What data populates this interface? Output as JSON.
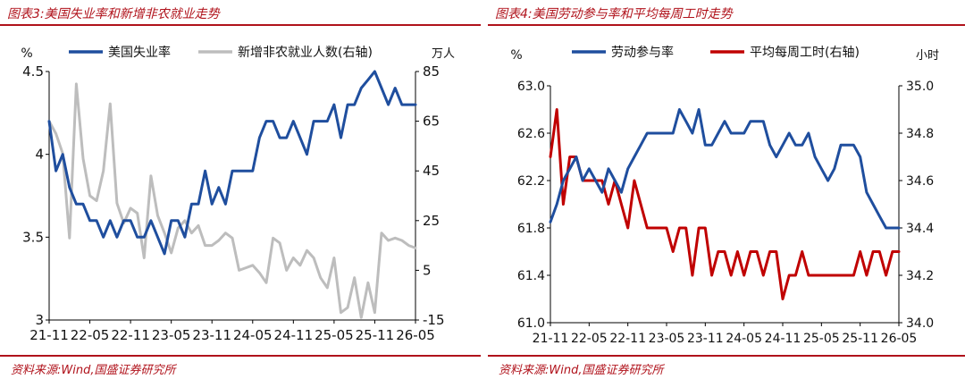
{
  "charts": [
    {
      "title": "图表3:美国失业率和新增非农就业走势",
      "source": "资料来源:Wind,国盛证券研究所",
      "chart_data": {
        "type": "line",
        "x": [
          "21-11",
          "21-12",
          "22-01",
          "22-02",
          "22-03",
          "22-04",
          "22-05",
          "22-06",
          "22-07",
          "22-08",
          "22-09",
          "22-10",
          "22-11",
          "22-12",
          "23-01",
          "23-02",
          "23-03",
          "23-04",
          "23-05",
          "23-06",
          "23-07",
          "23-08",
          "23-09",
          "23-10",
          "23-11",
          "23-12",
          "24-01",
          "24-02",
          "24-03",
          "24-04",
          "24-05",
          "24-06",
          "24-07",
          "24-08",
          "24-09",
          "24-10",
          "24-11",
          "24-12",
          "25-01",
          "25-02",
          "25-03",
          "25-04",
          "25-05",
          "25-06",
          "25-07",
          "25-08",
          "25-09",
          "25-10",
          "25-11",
          "25-12",
          "26-01",
          "26-02",
          "26-03",
          "26-04",
          "26-05"
        ],
        "xticks": [
          "21-11",
          "22-05",
          "22-11",
          "23-05",
          "23-11",
          "24-05",
          "24-11",
          "25-05",
          "25-11",
          "26-05"
        ],
        "left_unit": "%",
        "right_unit": "万人",
        "ylim_left": [
          3,
          4.5
        ],
        "yticks_left": [
          "4.5",
          "4",
          "3.5",
          "3"
        ],
        "ylim_right": [
          -15,
          85
        ],
        "yticks_right": [
          "85",
          "65",
          "45",
          "25",
          "5",
          "-15"
        ],
        "legend_position": "top",
        "series": [
          {
            "name": "美国失业率",
            "axis": "left",
            "color": "#1f4e9e",
            "values": [
              4.2,
              3.9,
              4.0,
              3.8,
              3.7,
              3.7,
              3.6,
              3.6,
              3.5,
              3.6,
              3.5,
              3.6,
              3.6,
              3.5,
              3.5,
              3.6,
              3.5,
              3.4,
              3.6,
              3.6,
              3.5,
              3.7,
              3.7,
              3.9,
              3.7,
              3.8,
              3.7,
              3.9,
              3.9,
              3.9,
              3.9,
              4.1,
              4.2,
              4.2,
              4.1,
              4.1,
              4.2,
              4.1,
              4.0,
              4.2,
              4.2,
              4.2,
              4.3,
              4.1,
              4.3,
              4.3,
              4.4,
              4.45,
              4.5,
              4.4,
              4.3,
              4.4,
              4.3,
              4.3,
              4.3
            ]
          },
          {
            "name": "新增非农就业人数(右轴)",
            "axis": "right",
            "color": "#bdbdbd",
            "values": [
              65,
              60,
              52,
              18,
              80,
              50,
              35,
              33,
              45,
              72,
              32,
              24,
              30,
              28,
              10,
              43,
              27,
              20,
              12,
              22,
              25,
              20,
              23,
              15,
              15,
              17,
              20,
              18,
              5,
              6,
              7,
              4,
              0,
              18,
              16,
              5,
              10,
              7,
              13,
              10,
              2,
              -2,
              10,
              -12,
              -10,
              2,
              -14,
              0,
              -12,
              20,
              17,
              18,
              17,
              15,
              14
            ]
          }
        ]
      }
    },
    {
      "title": "图表4:美国劳动参与率和平均每周工时走势",
      "source": "资料来源:Wind,国盛证券研究所",
      "chart_data": {
        "type": "line",
        "x": [
          "21-11",
          "21-12",
          "22-01",
          "22-02",
          "22-03",
          "22-04",
          "22-05",
          "22-06",
          "22-07",
          "22-08",
          "22-09",
          "22-10",
          "22-11",
          "22-12",
          "23-01",
          "23-02",
          "23-03",
          "23-04",
          "23-05",
          "23-06",
          "23-07",
          "23-08",
          "23-09",
          "23-10",
          "23-11",
          "23-12",
          "24-01",
          "24-02",
          "24-03",
          "24-04",
          "24-05",
          "24-06",
          "24-07",
          "24-08",
          "24-09",
          "24-10",
          "24-11",
          "24-12",
          "25-01",
          "25-02",
          "25-03",
          "25-04",
          "25-05",
          "25-06",
          "25-07",
          "25-08",
          "25-09",
          "25-10",
          "25-11",
          "25-12",
          "26-01",
          "26-02",
          "26-03",
          "26-04",
          "26-05"
        ],
        "xticks": [
          "21-11",
          "22-05",
          "22-11",
          "23-05",
          "23-11",
          "24-05",
          "24-11",
          "25-05",
          "25-11",
          "26-05"
        ],
        "left_unit": "%",
        "right_unit": "小时",
        "ylim_left": [
          61.0,
          63.0
        ],
        "yticks_left": [
          "63.0",
          "62.6",
          "62.2",
          "61.8",
          "61.4",
          "61.0"
        ],
        "ylim_right": [
          34.0,
          35.0
        ],
        "yticks_right": [
          "35.0",
          "34.8",
          "34.6",
          "34.4",
          "34.2",
          "34.0"
        ],
        "legend_position": "top",
        "series": [
          {
            "name": "劳动参与率",
            "axis": "left",
            "color": "#1f4e9e",
            "values": [
              61.85,
              62.0,
              62.2,
              62.3,
              62.4,
              62.2,
              62.3,
              62.2,
              62.1,
              62.3,
              62.2,
              62.1,
              62.3,
              62.4,
              62.5,
              62.6,
              62.6,
              62.6,
              62.6,
              62.6,
              62.8,
              62.7,
              62.6,
              62.8,
              62.5,
              62.5,
              62.6,
              62.7,
              62.6,
              62.6,
              62.6,
              62.7,
              62.7,
              62.7,
              62.5,
              62.4,
              62.5,
              62.6,
              62.5,
              62.5,
              62.6,
              62.4,
              62.3,
              62.2,
              62.3,
              62.5,
              62.5,
              62.5,
              62.4,
              62.1,
              62.0,
              61.9,
              61.8,
              61.8,
              61.8
            ]
          },
          {
            "name": "平均每周工时(右轴)",
            "axis": "right",
            "color": "#c00000",
            "values": [
              34.7,
              34.9,
              34.5,
              34.7,
              34.7,
              34.6,
              34.6,
              34.6,
              34.6,
              34.5,
              34.6,
              34.5,
              34.4,
              34.6,
              34.5,
              34.4,
              34.4,
              34.4,
              34.4,
              34.3,
              34.4,
              34.4,
              34.2,
              34.4,
              34.4,
              34.2,
              34.3,
              34.3,
              34.2,
              34.3,
              34.2,
              34.3,
              34.3,
              34.2,
              34.3,
              34.3,
              34.1,
              34.2,
              34.2,
              34.3,
              34.2,
              34.2,
              34.2,
              34.2,
              34.2,
              34.2,
              34.2,
              34.2,
              34.3,
              34.2,
              34.3,
              34.3,
              34.2,
              34.3,
              34.3
            ]
          }
        ]
      }
    }
  ]
}
